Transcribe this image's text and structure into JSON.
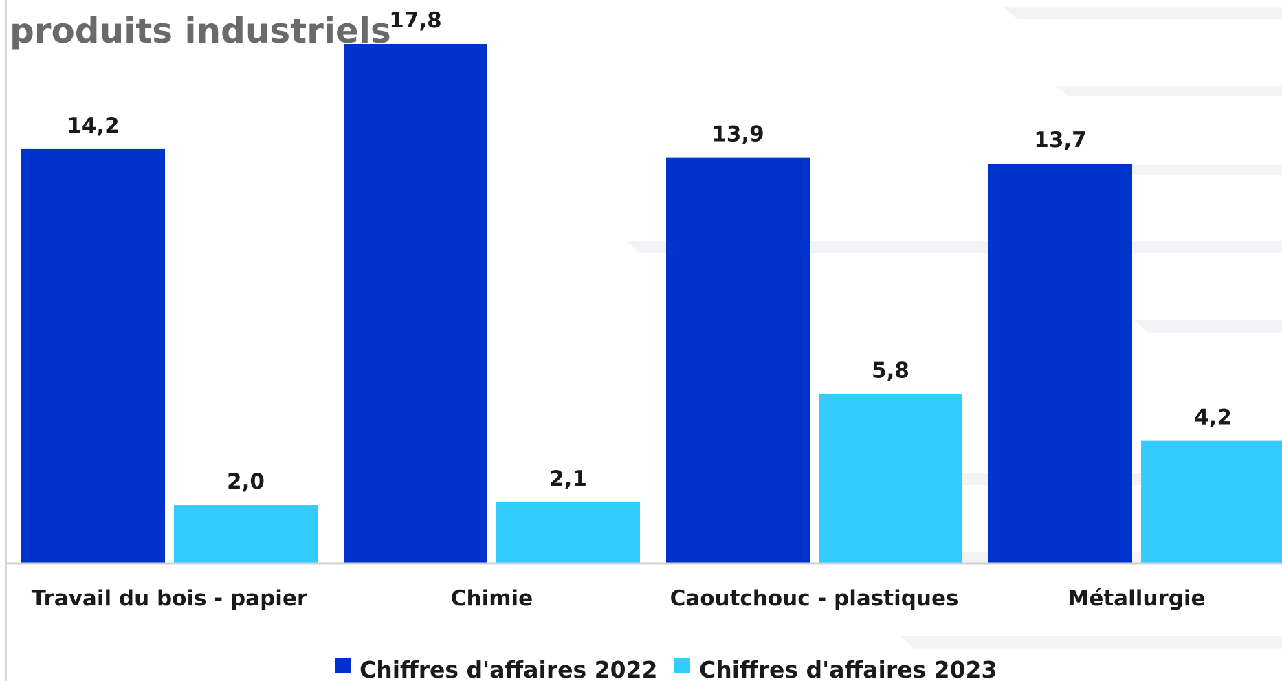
{
  "chart_data": {
    "type": "bar",
    "title": "produits industriels",
    "xlabel": "",
    "ylabel": "",
    "ylim": [
      0,
      20
    ],
    "grid": false,
    "legend_position": "bottom",
    "categories": [
      "Travail du bois - papier",
      "Chimie",
      "Caoutchouc - plastiques",
      "Métallurgie"
    ],
    "series": [
      {
        "name": "Chiffres d'affaires 2022",
        "color": "#0033cc",
        "values": [
          14.2,
          17.8,
          13.9,
          13.7
        ],
        "labels": [
          "14,2",
          "17,8",
          "13,9",
          "13,7"
        ]
      },
      {
        "name": "Chiffres d'affaires 2023",
        "color": "#33ccff",
        "values": [
          2.0,
          2.1,
          5.8,
          4.2
        ],
        "labels": [
          "2,0",
          "2,1",
          "5,8",
          "4,2"
        ]
      }
    ]
  }
}
